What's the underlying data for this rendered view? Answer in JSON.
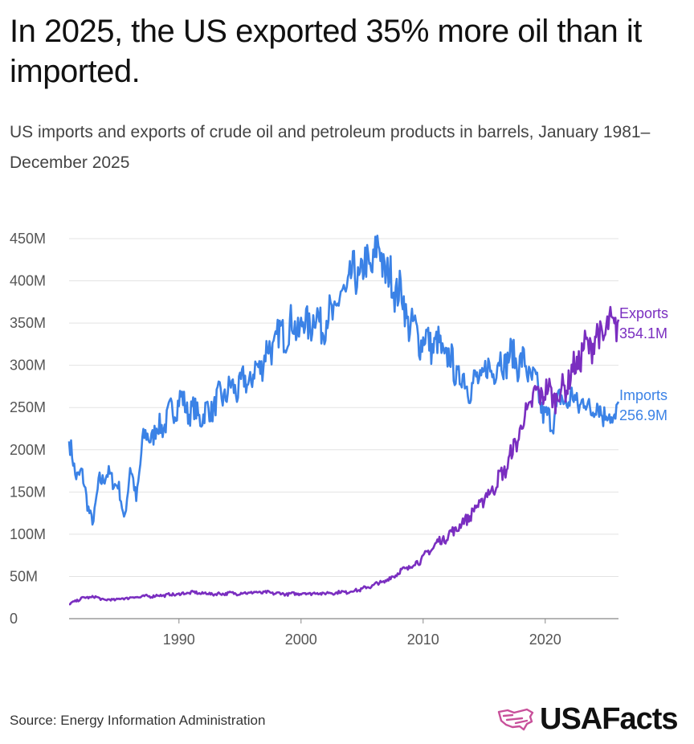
{
  "title": "In 2025, the US exported 35% more oil than it imported.",
  "subtitle": "US imports and exports of crude oil and petroleum products in barrels, January 1981–December 2025",
  "source": "Source: Energy Information Administration",
  "brand": {
    "name": "USAFacts",
    "icon": "us-map-icon",
    "icon_color": "#c8509a"
  },
  "colors": {
    "imports": "#3b82e6",
    "exports": "#7a2ec0",
    "grid": "#e3e3e3",
    "axis": "#888888"
  },
  "chart_data": {
    "type": "line",
    "title": "US imports and exports of crude oil and petroleum products",
    "xlabel": "",
    "ylabel": "",
    "x_range": [
      1981,
      2026
    ],
    "ylim": [
      0,
      450
    ],
    "y_ticks": [
      0,
      50,
      100,
      150,
      200,
      250,
      300,
      350,
      400,
      450
    ],
    "y_tick_labels": [
      "0",
      "50M",
      "100M",
      "150M",
      "200M",
      "250M",
      "300M",
      "350M",
      "400M",
      "450M"
    ],
    "x_ticks": [
      1990,
      2000,
      2010,
      2020
    ],
    "x_tick_labels": [
      "1990",
      "2000",
      "2010",
      "2020"
    ],
    "grid": true,
    "series": [
      {
        "name": "Imports",
        "end_label": "Imports",
        "end_value_label": "256.9M",
        "x": [
          1981,
          1981.5,
          1982,
          1982.5,
          1983,
          1983.5,
          1984,
          1985,
          1985.5,
          1986,
          1986.5,
          1987,
          1988,
          1989,
          1990,
          1991,
          1992,
          1993,
          1994,
          1995,
          1996,
          1997,
          1998,
          1999,
          2000,
          2001,
          2002,
          2003,
          2004,
          2005,
          2006,
          2006.5,
          2007,
          2008,
          2009,
          2010,
          2011,
          2012,
          2013,
          2014,
          2015,
          2016,
          2017,
          2018,
          2019,
          2020,
          2020.5,
          2021,
          2022,
          2023,
          2024,
          2025,
          2025.5,
          2026
        ],
        "values": [
          210,
          170,
          175,
          135,
          115,
          165,
          170,
          160,
          115,
          180,
          140,
          210,
          220,
          235,
          260,
          245,
          240,
          255,
          270,
          275,
          285,
          310,
          330,
          345,
          345,
          355,
          350,
          370,
          400,
          410,
          425,
          440,
          405,
          390,
          345,
          330,
          325,
          310,
          285,
          275,
          290,
          300,
          310,
          305,
          285,
          240,
          230,
          255,
          260,
          255,
          250,
          245,
          230,
          256.9
        ]
      },
      {
        "name": "Exports",
        "end_label": "Exports",
        "end_value_label": "354.1M",
        "x": [
          1981,
          1982,
          1983,
          1984,
          1985,
          1986,
          1987,
          1988,
          1989,
          1990,
          1991,
          1992,
          1993,
          1994,
          1995,
          1996,
          1997,
          1998,
          1999,
          2000,
          2001,
          2002,
          2003,
          2004,
          2005,
          2006,
          2007,
          2008,
          2009,
          2010,
          2011,
          2012,
          2013,
          2014,
          2015,
          2016,
          2017,
          2018,
          2019,
          2020,
          2021,
          2022,
          2023,
          2024,
          2025,
          2026
        ],
        "values": [
          17,
          24,
          26,
          22,
          23,
          25,
          26,
          27,
          28,
          29,
          31,
          30,
          29,
          30,
          30,
          31,
          31,
          30,
          29,
          30,
          30,
          30,
          31,
          32,
          35,
          40,
          45,
          55,
          62,
          72,
          88,
          98,
          110,
          125,
          142,
          160,
          185,
          225,
          262,
          270,
          262,
          285,
          315,
          330,
          340,
          354.1
        ]
      }
    ]
  }
}
